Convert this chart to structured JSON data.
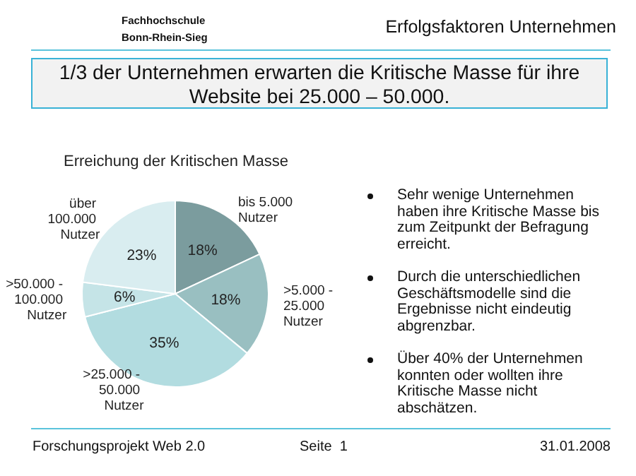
{
  "chart_data": {
    "type": "pie",
    "title": "Erreichung der Kritischen Masse",
    "categories": [
      "bis 5.000 Nutzer",
      ">5.000 - 25.000 Nutzer",
      ">25.000 - 50.000 Nutzer",
      ">50.000 - 100.000 Nutzer",
      "über 100.000 Nutzer"
    ],
    "values": [
      18,
      18,
      35,
      6,
      23
    ],
    "colors": [
      "#7b9c9e",
      "#99bfc1",
      "#b2dce0",
      "#c5e4e7",
      "#d9edf0"
    ],
    "value_labels": [
      "18%",
      "18%",
      "35%",
      "6%",
      "23%"
    ],
    "legend": false,
    "annotations": [
      "Erfolgsfaktoren Unternehmen",
      "Fachhochschule Bonn-Rhein-Sieg",
      "1/3 der Unternehmen erwarten die Kritische Masse für ihre Website bei 25.000 – 50.000.",
      "Sehr wenige Unternehmen haben ihre Kritische Masse bis zum Zeitpunkt der Befragung erreicht.",
      "Durch die unterschiedlichen Geschäftsmodelle sind die Ergebnisse nicht eindeutig abgrenzbar.",
      "Über 40% der Unternehmen konnten oder wollten ihre Kritische Masse nicht abschätzen.",
      "Forschungsprojekt Web 2.0",
      "Seite  1",
      "31.01.2008"
    ]
  }
}
